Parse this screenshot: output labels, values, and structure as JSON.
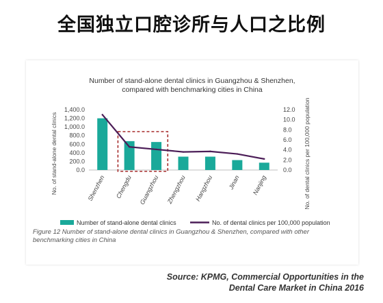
{
  "headline": "全国独立口腔诊所与人口之比例",
  "caption": "Figure 12 Number of stand-alone dental clinics in Guangzhou & Shenzhen, compared with other benchmarking cities in China",
  "source": {
    "line1": "Source: KPMG, Commercial Opportunities in the",
    "line2": "Dental Care Market in China 2016"
  },
  "chart_data": {
    "type": "bar",
    "title": "Number of stand-alone dental clinics in Guangzhou & Shenzhen, compared with benchmarking cities in China",
    "categories": [
      "Shenzhen",
      "Chengdu",
      "Guangzhou",
      "Zhengzhou",
      "Hangzhou",
      "Jinan",
      "Nanjing"
    ],
    "series": [
      {
        "name": "Number of stand-alone dental clinics",
        "kind": "bar",
        "axis": "left",
        "color": "#1aa99a",
        "values": [
          1200,
          670,
          650,
          310,
          310,
          230,
          170
        ]
      },
      {
        "name": "No. of dental clinics per 100,000 population",
        "kind": "line",
        "axis": "right",
        "color": "#4b1d57",
        "values": [
          11.0,
          4.6,
          4.1,
          3.6,
          3.7,
          3.2,
          2.2
        ]
      }
    ],
    "ylabel": "No. of stand-alone dental clinics",
    "y2label": "No. of dental clinics per 100,000 population",
    "ylim": [
      0,
      1400
    ],
    "y2lim": [
      0,
      12
    ],
    "yticks": [
      "0.0",
      "200.0",
      "400.0",
      "600.0",
      "800.0",
      "1,000.0",
      "1,200.0",
      "1,400.0"
    ],
    "y2ticks": [
      "0.0",
      "2.0",
      "4.0",
      "6.0",
      "8.0",
      "10.0",
      "12.0"
    ],
    "highlight": {
      "categories": [
        "Chengdu",
        "Guangzhou"
      ],
      "color": "#a52a2a",
      "style": "dashed"
    },
    "grid": false,
    "legend": "bottom"
  }
}
